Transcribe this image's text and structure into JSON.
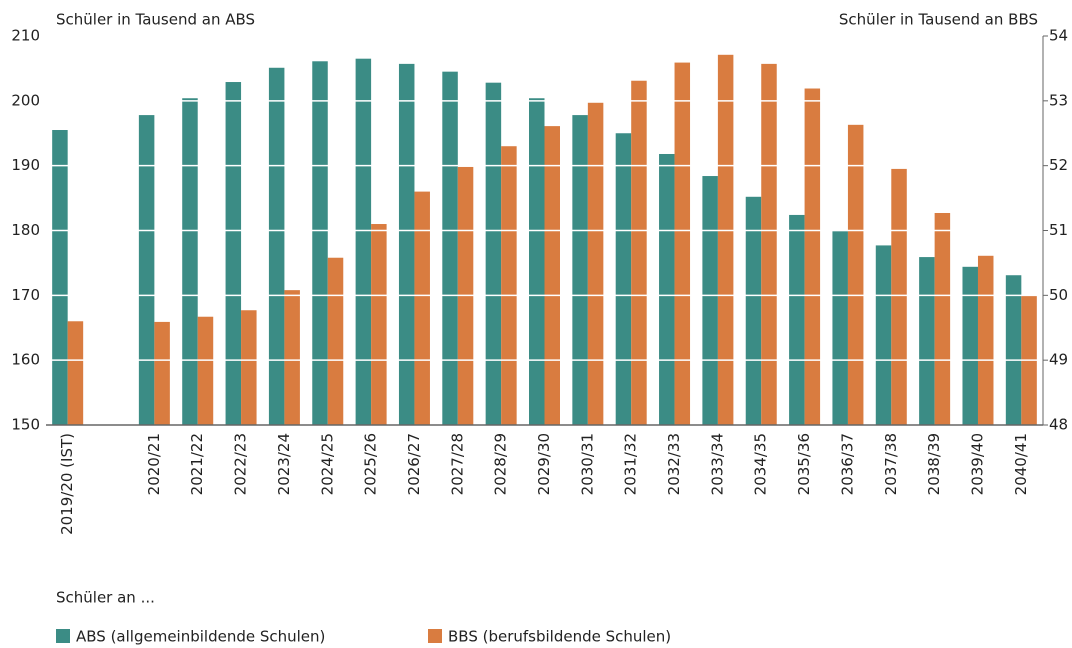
{
  "chart_data": {
    "type": "bar",
    "y_label": "Schüler in Tausend an ABS",
    "y2_label": "Schüler in Tausend an BBS",
    "legend_title": "Schüler an ...",
    "categories": [
      "2019/20 (IST)",
      null,
      "2020/21",
      "2021/22",
      "2022/23",
      "2023/24",
      "2024/25",
      "2025/26",
      "2026/27",
      "2027/28",
      "2028/29",
      "2029/30",
      "2030/31",
      "2031/32",
      "2032/33",
      "2033/34",
      "2034/35",
      "2035/36",
      "2036/37",
      "2037/38",
      "2038/39",
      "2039/40",
      "2040/41"
    ],
    "series": [
      {
        "name": "ABS (allgemeinbildende Schulen)",
        "color": "#3b8c85",
        "axis": "y",
        "values": [
          195.5,
          null,
          197.8,
          200.4,
          202.9,
          205.1,
          206.1,
          206.5,
          205.7,
          204.5,
          202.8,
          200.4,
          197.8,
          195,
          191.8,
          188.4,
          185.2,
          182.4,
          179.9,
          177.7,
          175.9,
          174.4,
          173.1
        ]
      },
      {
        "name": "BBS (berufsbildende Schulen)",
        "color": "#d97c40",
        "axis": "y2",
        "values": [
          49.6,
          null,
          49.59,
          49.67,
          49.77,
          50.08,
          50.58,
          51.1,
          51.6,
          51.98,
          52.3,
          52.61,
          52.97,
          53.31,
          53.59,
          53.71,
          53.57,
          53.19,
          52.63,
          51.95,
          51.27,
          50.61,
          49.99
        ]
      }
    ],
    "ylim": [
      150,
      210
    ],
    "yticks": [
      150,
      160,
      170,
      180,
      190,
      200,
      210
    ],
    "y2lim": [
      48,
      54
    ],
    "y2ticks": [
      48,
      49,
      50,
      51,
      52,
      53,
      54
    ],
    "grid": true
  }
}
